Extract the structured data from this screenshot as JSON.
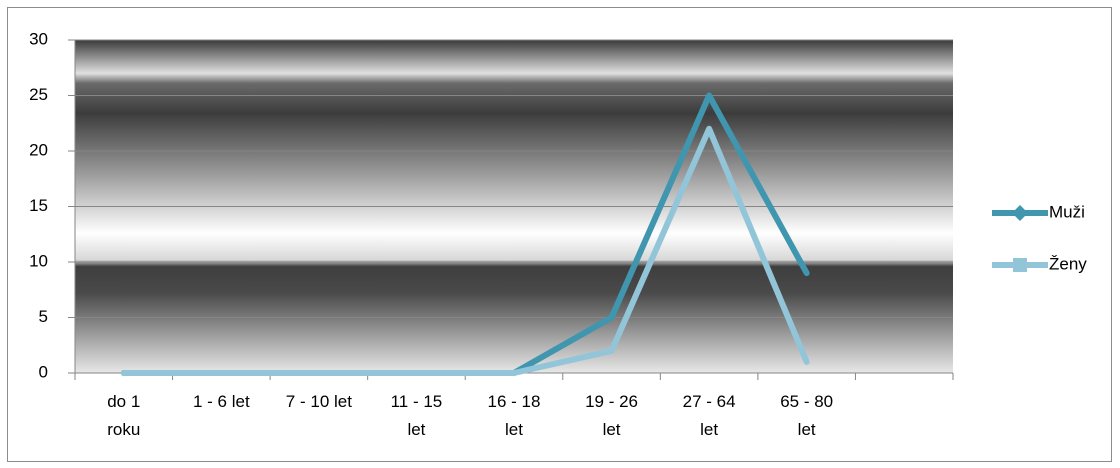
{
  "chart_data": {
    "type": "line",
    "categories": [
      "do 1 roku",
      "1 - 6 let",
      "7 - 10 let",
      "11 - 15 let",
      "16 - 18 let",
      "19 - 26 let",
      "27 - 64 let",
      "65 - 80 let",
      null
    ],
    "series": [
      {
        "name": "Muži",
        "color": "#4096ae",
        "marker": "diamond",
        "values": [
          0,
          0,
          0,
          0,
          0,
          5,
          25,
          9,
          null
        ]
      },
      {
        "name": "Ženy",
        "color": "#93c5d9",
        "marker": "square",
        "values": [
          0,
          0,
          0,
          0,
          0,
          2,
          22,
          1,
          null
        ]
      }
    ],
    "ylim": [
      0,
      30
    ],
    "yticks": [
      0,
      5,
      10,
      15,
      20,
      25,
      30
    ],
    "grid": true,
    "legend": "right"
  }
}
